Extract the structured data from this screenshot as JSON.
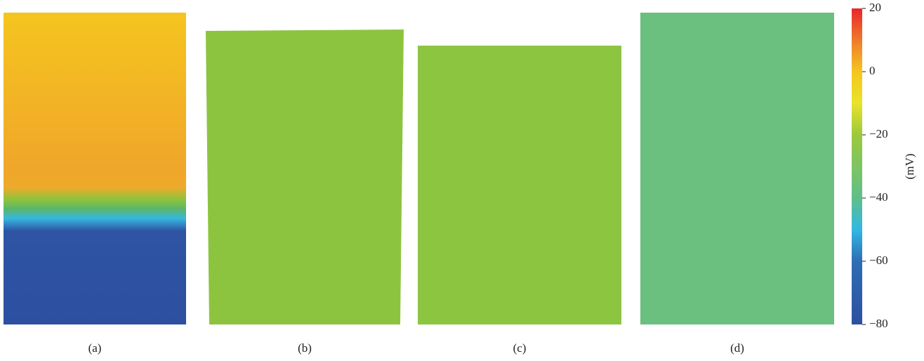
{
  "panels": [
    {
      "label": "(a)"
    },
    {
      "label": "(b)"
    },
    {
      "label": "(c)"
    },
    {
      "label": "(d)"
    }
  ],
  "colorbar": {
    "label": "(mV)",
    "lim": [
      -80,
      20
    ],
    "ticks": [
      20,
      0,
      {
        "value": -20,
        "label": "−20"
      },
      {
        "value": -40,
        "label": "−40"
      },
      {
        "value": -60,
        "label": "−60"
      },
      {
        "value": -80,
        "label": "−80"
      }
    ]
  }
}
